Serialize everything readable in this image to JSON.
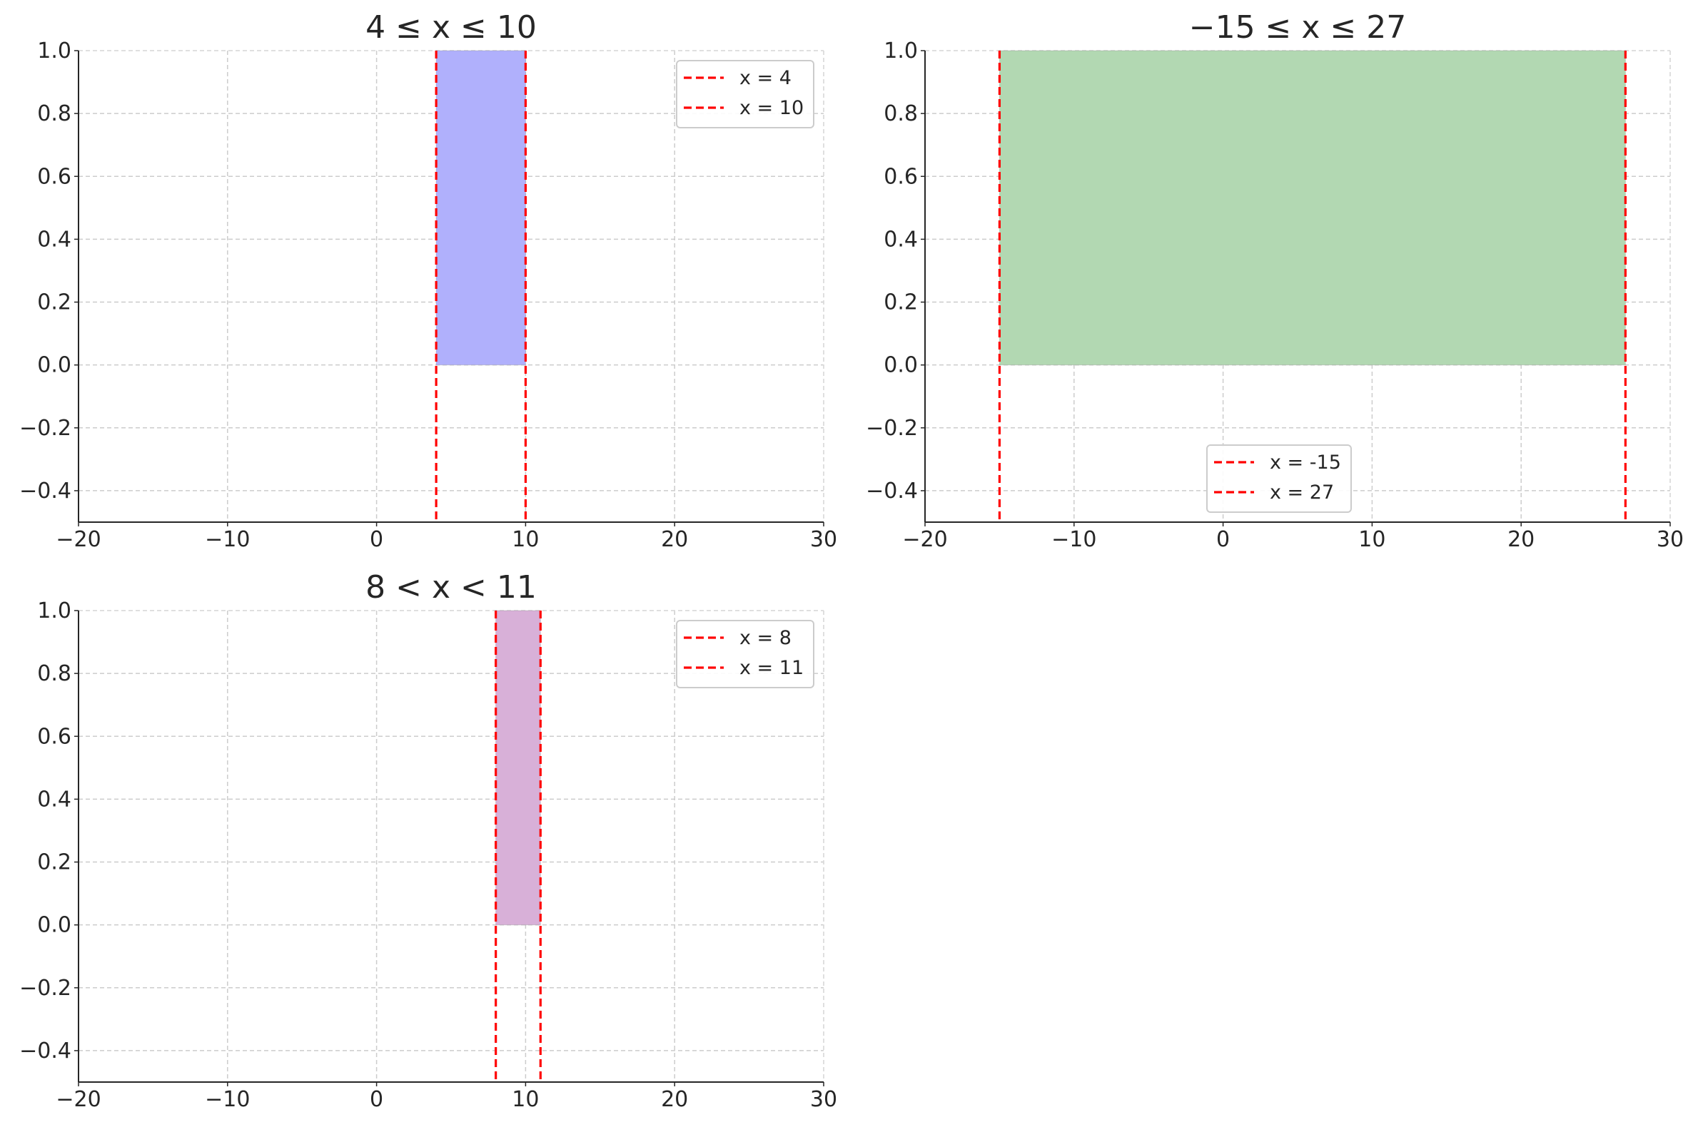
{
  "chart_data": [
    {
      "type": "area",
      "title": "4 ≤ x ≤ 10",
      "xlabel": "",
      "ylabel": "",
      "xlim": [
        -20,
        30
      ],
      "ylim": [
        -0.5,
        1.0
      ],
      "xticks": [
        -20,
        -10,
        0,
        10,
        20,
        30
      ],
      "xtick_labels": [
        "−20",
        "−10",
        "0",
        "10",
        "20",
        "30"
      ],
      "yticks": [
        -0.4,
        -0.2,
        0.0,
        0.2,
        0.4,
        0.6,
        0.8,
        1.0
      ],
      "ytick_labels": [
        "−0.4",
        "−0.2",
        "0.0",
        "0.2",
        "0.4",
        "0.6",
        "0.8",
        "1.0"
      ],
      "grid": true,
      "region": {
        "x_start": 4,
        "x_end": 10,
        "y_start": 0,
        "y_end": 1,
        "color": "#b0b0fc"
      },
      "vlines": [
        {
          "x": 4,
          "label": "x = 4",
          "color": "#ff0000"
        },
        {
          "x": 10,
          "label": "x = 10",
          "color": "#ff0000"
        }
      ],
      "legend_position": "upper right"
    },
    {
      "type": "area",
      "title": "−15 ≤ x ≤ 27",
      "xlabel": "",
      "ylabel": "",
      "xlim": [
        -20,
        30
      ],
      "ylim": [
        -0.5,
        1.0
      ],
      "xticks": [
        -20,
        -10,
        0,
        10,
        20,
        30
      ],
      "xtick_labels": [
        "−20",
        "−10",
        "0",
        "10",
        "20",
        "30"
      ],
      "yticks": [
        -0.4,
        -0.2,
        0.0,
        0.2,
        0.4,
        0.6,
        0.8,
        1.0
      ],
      "ytick_labels": [
        "−0.4",
        "−0.2",
        "0.0",
        "0.2",
        "0.4",
        "0.6",
        "0.8",
        "1.0"
      ],
      "grid": true,
      "region": {
        "x_start": -15,
        "x_end": 27,
        "y_start": 0,
        "y_end": 1,
        "color": "#b2d8b2"
      },
      "vlines": [
        {
          "x": -15,
          "label": "x = -15",
          "color": "#ff0000"
        },
        {
          "x": 27,
          "label": "x = 27",
          "color": "#ff0000"
        }
      ],
      "legend_position": "lower center"
    },
    {
      "type": "area",
      "title": "8 < x < 11",
      "xlabel": "",
      "ylabel": "",
      "xlim": [
        -20,
        30
      ],
      "ylim": [
        -0.5,
        1.0
      ],
      "xticks": [
        -20,
        -10,
        0,
        10,
        20,
        30
      ],
      "xtick_labels": [
        "−20",
        "−10",
        "0",
        "10",
        "20",
        "30"
      ],
      "yticks": [
        -0.4,
        -0.2,
        0.0,
        0.2,
        0.4,
        0.6,
        0.8,
        1.0
      ],
      "ytick_labels": [
        "−0.4",
        "−0.2",
        "0.0",
        "0.2",
        "0.4",
        "0.6",
        "0.8",
        "1.0"
      ],
      "grid": true,
      "region": {
        "x_start": 8,
        "x_end": 11,
        "y_start": 0,
        "y_end": 1,
        "color": "#d8b0d8"
      },
      "vlines": [
        {
          "x": 8,
          "label": "x = 8",
          "color": "#ff0000"
        },
        {
          "x": 11,
          "label": "x = 11",
          "color": "#ff0000"
        }
      ],
      "legend_position": "upper right"
    }
  ]
}
